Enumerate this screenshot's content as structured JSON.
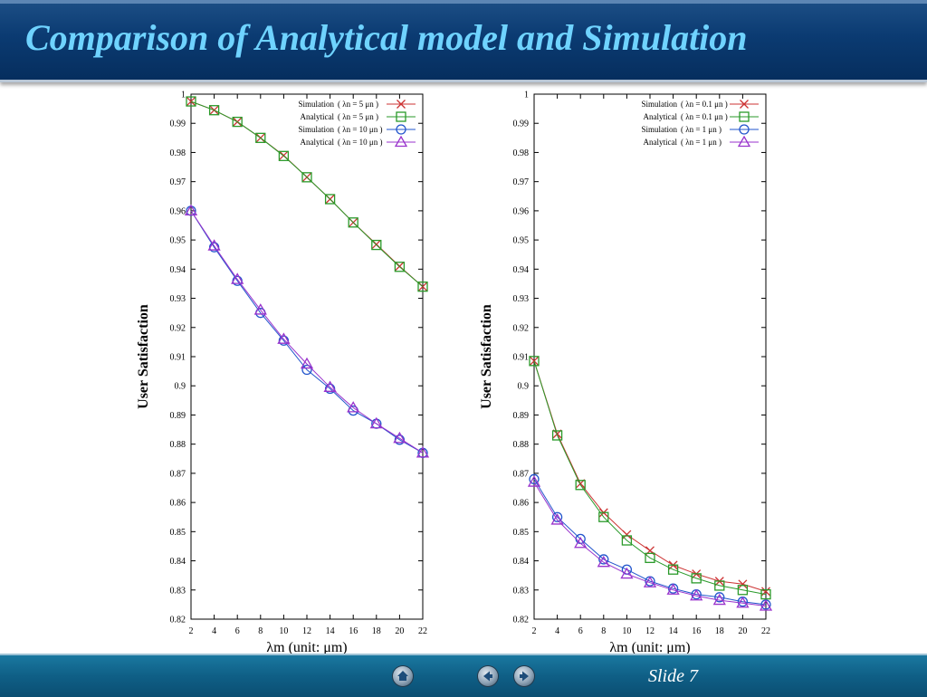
{
  "slide": {
    "title": "Comparison of Analytical model and Simulation",
    "slide_label": "Slide 7"
  },
  "nav": {
    "home_icon": "home-icon",
    "back_icon": "arrow-left-icon",
    "forward_icon": "arrow-right-icon"
  },
  "chart_data": [
    {
      "type": "line",
      "ylabel": "User Satisfaction",
      "xlabel": "λm (unit: μm)",
      "x": [
        2,
        4,
        6,
        8,
        10,
        12,
        14,
        16,
        18,
        20,
        22
      ],
      "xlim": [
        2,
        22
      ],
      "ylim": [
        0.82,
        1.0
      ],
      "x_ticks": [
        2,
        4,
        6,
        8,
        10,
        12,
        14,
        16,
        18,
        20,
        22
      ],
      "y_ticks": [
        0.82,
        0.83,
        0.84,
        0.85,
        0.86,
        0.87,
        0.88,
        0.89,
        0.9,
        0.91,
        0.92,
        0.93,
        0.94,
        0.95,
        0.96,
        0.97,
        0.98,
        0.99,
        1
      ],
      "legend_position": "top-right",
      "series": [
        {
          "name": "Simulation ( λn = 5 μn )",
          "color": "#cc3333",
          "marker": "x",
          "values": [
            0.9975,
            0.9945,
            0.9905,
            0.985,
            0.979,
            0.9715,
            0.964,
            0.956,
            0.9485,
            0.941,
            0.934
          ]
        },
        {
          "name": "Analytical ( λn = 5 μn )",
          "color": "#2a9a2a",
          "marker": "square",
          "values": [
            0.9975,
            0.9945,
            0.9905,
            0.985,
            0.9788,
            0.9715,
            0.964,
            0.956,
            0.9483,
            0.9408,
            0.934
          ]
        },
        {
          "name": "Simulation ( λn = 10 μn )",
          "color": "#2255cc",
          "marker": "circle",
          "values": [
            0.96,
            0.9475,
            0.936,
            0.925,
            0.9155,
            0.9055,
            0.899,
            0.8915,
            0.887,
            0.8815,
            0.877
          ]
        },
        {
          "name": "Analytical ( λn = 10 μn )",
          "color": "#9933cc",
          "marker": "triangle",
          "values": [
            0.96,
            0.948,
            0.9365,
            0.926,
            0.916,
            0.9075,
            0.8995,
            0.8925,
            0.887,
            0.882,
            0.877
          ]
        }
      ]
    },
    {
      "type": "line",
      "ylabel": "User Satisfaction",
      "xlabel": "λm (unit: μm)",
      "x": [
        2,
        4,
        6,
        8,
        10,
        12,
        14,
        16,
        18,
        20,
        22
      ],
      "xlim": [
        2,
        22
      ],
      "ylim": [
        0.82,
        1.0
      ],
      "x_ticks": [
        2,
        4,
        6,
        8,
        10,
        12,
        14,
        16,
        18,
        20,
        22
      ],
      "y_ticks": [
        0.82,
        0.83,
        0.84,
        0.85,
        0.86,
        0.87,
        0.88,
        0.89,
        0.9,
        0.91,
        0.92,
        0.93,
        0.94,
        0.95,
        0.96,
        0.97,
        0.98,
        0.99,
        1
      ],
      "legend_position": "top-right",
      "series": [
        {
          "name": "Simulation ( λn = 0.1 μn )",
          "color": "#cc3333",
          "marker": "x",
          "values": [
            0.9085,
            0.8835,
            0.8665,
            0.8565,
            0.849,
            0.8435,
            0.8385,
            0.8355,
            0.833,
            0.832,
            0.8295
          ]
        },
        {
          "name": "Analytical ( λn = 0.1 μn )",
          "color": "#2a9a2a",
          "marker": "square",
          "values": [
            0.9085,
            0.883,
            0.866,
            0.855,
            0.847,
            0.841,
            0.837,
            0.834,
            0.8315,
            0.83,
            0.8285
          ]
        },
        {
          "name": "Simulation ( λn = 1 μn )",
          "color": "#2255cc",
          "marker": "circle",
          "values": [
            0.868,
            0.855,
            0.8475,
            0.8405,
            0.837,
            0.833,
            0.8305,
            0.8285,
            0.8275,
            0.826,
            0.825
          ]
        },
        {
          "name": "Analytical ( λn = 1 μn )",
          "color": "#9933cc",
          "marker": "triangle",
          "values": [
            0.867,
            0.854,
            0.846,
            0.8395,
            0.8355,
            0.8325,
            0.83,
            0.828,
            0.8265,
            0.8255,
            0.8245
          ]
        }
      ]
    }
  ]
}
